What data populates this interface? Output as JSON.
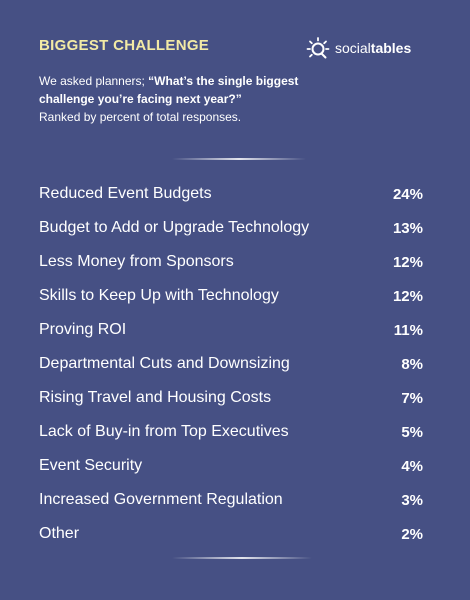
{
  "header": {
    "title": "BIGGEST CHALLENGE",
    "brand_regular": "social",
    "brand_bold": "tables"
  },
  "intro": {
    "lead": "We asked planners; ",
    "question": "“What’s the single biggest challenge you’re facing next year?”",
    "note": "Ranked by percent of total responses."
  },
  "colors": {
    "background": "#465084",
    "title": "#f2eaa5",
    "text": "#ffffff"
  },
  "chart_data": {
    "type": "table",
    "title": "BIGGEST CHALLENGE",
    "unit": "%",
    "categories": [
      "Reduced Event Budgets",
      "Budget to Add or Upgrade Technology",
      "Less Money from Sponsors",
      "Skills to Keep Up with Technology",
      "Proving ROI",
      "Departmental Cuts and Downsizing",
      "Rising Travel and Housing Costs",
      "Lack of Buy-in from Top Executives",
      "Event Security",
      "Increased Government Regulation",
      "Other"
    ],
    "values": [
      24,
      13,
      12,
      12,
      11,
      8,
      7,
      5,
      4,
      3,
      2
    ]
  }
}
